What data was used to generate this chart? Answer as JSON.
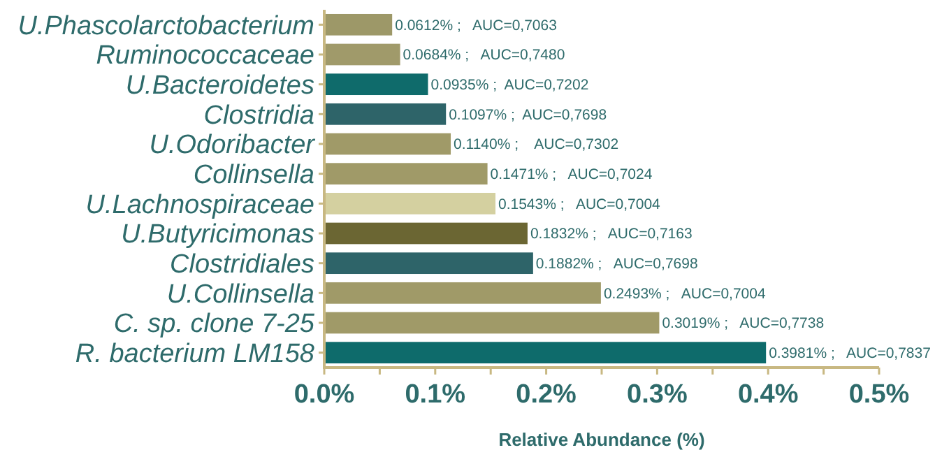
{
  "chart_data": {
    "type": "bar",
    "orientation": "horizontal",
    "xlabel": "Relative Abundance (%)",
    "categories": [
      "U.Phascolarctobacterium",
      "Ruminococcaceae",
      "U.Bacteroidetes",
      "Clostridia",
      "U.Odoribacter",
      "Collinsella",
      "U.Lachnospiraceae",
      "U.Butyricimonas",
      "Clostridiales",
      "U.Collinsella",
      "C. sp. clone 7-25",
      "R. bacterium LM158"
    ],
    "values": [
      0.0612,
      0.0684,
      0.0935,
      0.1097,
      0.114,
      0.1471,
      0.1543,
      0.1832,
      0.1882,
      0.2493,
      0.3019,
      0.3981
    ],
    "colors": [
      "#9d9868",
      "#a09a6a",
      "#0f6b6b",
      "#2e6469",
      "#a09a68",
      "#a09a68",
      "#d4d0a0",
      "#6b6633",
      "#2e6469",
      "#a09a68",
      "#a09a68",
      "#0e6b6b"
    ],
    "value_labels": [
      "0.0612% ;   AUC=0,7063",
      "0.0684% ;   AUC=0,7480",
      "0.0935% ;  AUC=0,7202",
      "0.1097% ;  AUC=0,7698",
      "0.1140% ;    AUC=0,7302",
      "0.1471% ;   AUC=0,7024",
      "0.1543% ;   AUC=0,7004",
      "0.1832% ;   AUC=0,7163",
      "0.1882% ;   AUC=0,7698",
      "0.2493% ;   AUC=0,7004",
      "0.3019% ;   AUC=0,7738",
      "0.3981% ;   AUC=0,7837"
    ],
    "xlim": [
      0,
      0.5
    ],
    "xticks": [
      {
        "value": 0,
        "label": "0.0%"
      },
      {
        "value": 0.05,
        "label": null
      },
      {
        "value": 0.1,
        "label": "0.1%"
      },
      {
        "value": 0.15,
        "label": null
      },
      {
        "value": 0.2,
        "label": "0.2%"
      },
      {
        "value": 0.25,
        "label": null
      },
      {
        "value": 0.3,
        "label": "0.3%"
      },
      {
        "value": 0.35,
        "label": null
      },
      {
        "value": 0.4,
        "label": "0.4%"
      },
      {
        "value": 0.45,
        "label": null
      },
      {
        "value": 0.5,
        "label": "0.5%"
      }
    ],
    "grid": false
  }
}
